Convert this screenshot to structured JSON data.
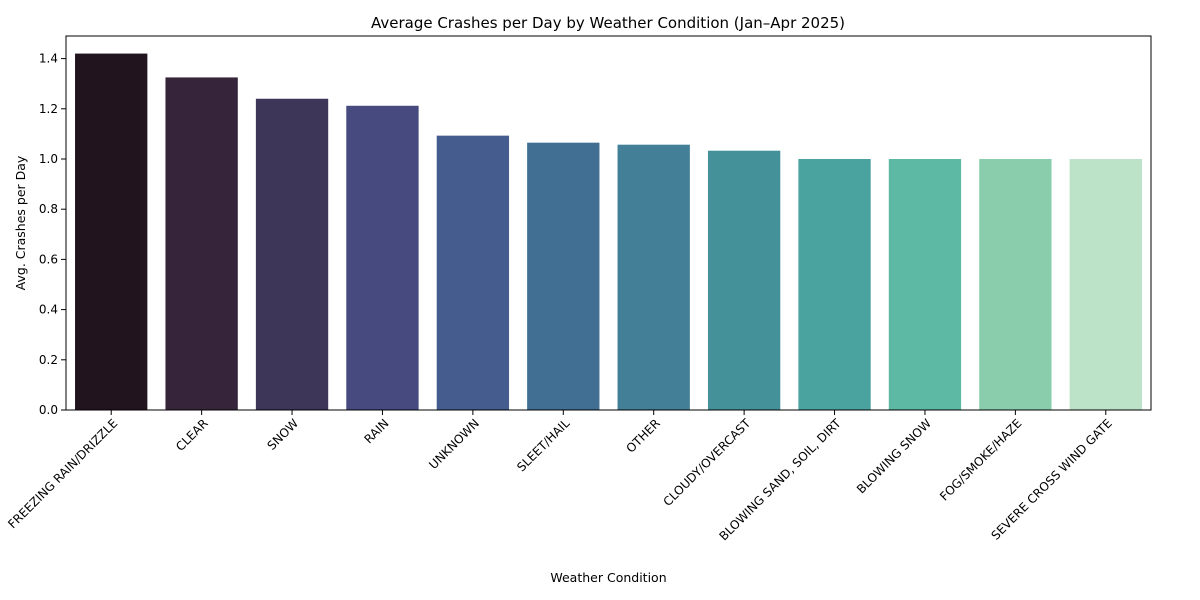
{
  "chart_data": {
    "type": "bar",
    "title": "Average Crashes per Day by Weather Condition (Jan–Apr 2025)",
    "xlabel": "Weather Condition",
    "ylabel": "Avg. Crashes per Day",
    "ylim": [
      0,
      1.49
    ],
    "yticks": [
      0.0,
      0.2,
      0.4,
      0.6,
      0.8,
      1.0,
      1.2,
      1.4
    ],
    "categories": [
      "FREEZING RAIN/DRIZZLE",
      "CLEAR",
      "SNOW",
      "RAIN",
      "UNKNOWN",
      "SLEET/HAIL",
      "OTHER",
      "CLOUDY/OVERCAST",
      "BLOWING SAND, SOIL, DIRT",
      "BLOWING SNOW",
      "FOG/SMOKE/HAZE",
      "SEVERE CROSS WIND GATE"
    ],
    "values": [
      1.42,
      1.325,
      1.24,
      1.212,
      1.093,
      1.065,
      1.057,
      1.033,
      1.0,
      1.0,
      1.0,
      1.0
    ],
    "colors": [
      "#21141f",
      "#35243a",
      "#3e3658",
      "#464a7e",
      "#445c8e",
      "#416f93",
      "#438098",
      "#44919a",
      "#4ba3a0",
      "#5db8a4",
      "#89cdad",
      "#bce2c8"
    ],
    "grid": false,
    "legend": "none"
  }
}
